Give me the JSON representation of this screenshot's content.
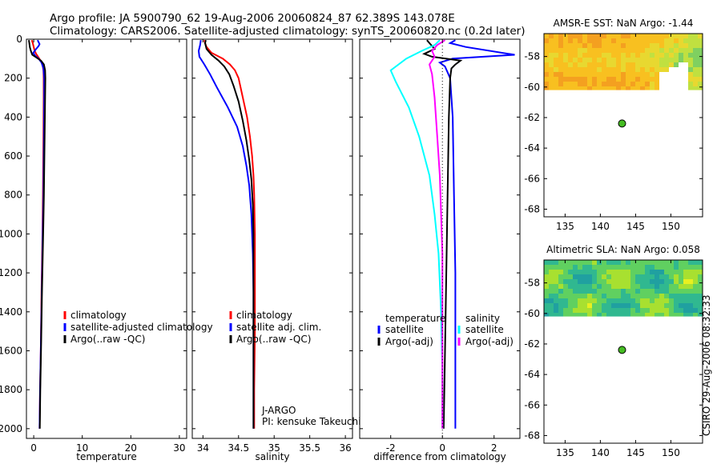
{
  "header": {
    "line1": "Argo profile: JA 5900790_62 19-Aug-2006 20060824_87 62.389S 143.078E",
    "line2": "Climatology: CARS2006. Satellite-adjusted climatology: synTS_20060820.nc (0.2d later)"
  },
  "stamp": "CSIRO 29-Aug-2006 08:32:33",
  "colors": {
    "red": "#ff0000",
    "blue": "#0000ff",
    "black": "#000000",
    "cyan": "#00ffff",
    "magenta": "#ff00ff",
    "float": "#44bb22"
  },
  "chart_data": [
    {
      "type": "line",
      "title": "",
      "xlabel": "temperature",
      "ylabel": "",
      "xlim": [
        -1.5,
        31.5
      ],
      "ylim": [
        2050,
        0
      ],
      "xticks": [
        0,
        10,
        20,
        30
      ],
      "yticks": [
        0,
        200,
        400,
        600,
        800,
        1000,
        1200,
        1400,
        1600,
        1800,
        2000
      ],
      "legend": [
        "climatology",
        "satellite-adjusted climatology",
        "Argo(..raw -QC)"
      ],
      "series": [
        {
          "name": "climatology",
          "color": "red",
          "points": [
            [
              -0.4,
              5
            ],
            [
              -0.2,
              20
            ],
            [
              0,
              40
            ],
            [
              0.2,
              60
            ],
            [
              0.5,
              75
            ],
            [
              0.9,
              90
            ],
            [
              1.4,
              110
            ],
            [
              1.8,
              130
            ],
            [
              2.0,
              160
            ],
            [
              2.05,
              200
            ],
            [
              2.05,
              300
            ],
            [
              2.0,
              500
            ],
            [
              1.9,
              800
            ],
            [
              1.8,
              1000
            ],
            [
              1.6,
              1300
            ],
            [
              1.45,
              1600
            ],
            [
              1.3,
              1800
            ],
            [
              1.2,
              2000
            ]
          ]
        },
        {
          "name": "satellite-adjusted climatology",
          "color": "blue",
          "points": [
            [
              0.8,
              5
            ],
            [
              1.0,
              15
            ],
            [
              1.2,
              25
            ],
            [
              1.0,
              35
            ],
            [
              0.5,
              50
            ],
            [
              -0.1,
              70
            ],
            [
              0.3,
              85
            ],
            [
              1.0,
              100
            ],
            [
              1.6,
              120
            ],
            [
              2.0,
              150
            ],
            [
              2.15,
              200
            ],
            [
              2.15,
              300
            ],
            [
              2.1,
              500
            ],
            [
              2.0,
              800
            ],
            [
              1.85,
              1000
            ],
            [
              1.65,
              1300
            ],
            [
              1.45,
              1600
            ],
            [
              1.3,
              1800
            ],
            [
              1.2,
              2000
            ]
          ]
        },
        {
          "name": "Argo(..raw -QC)",
          "color": "black",
          "points": [
            [
              -1.0,
              5
            ],
            [
              -0.9,
              20
            ],
            [
              -0.8,
              40
            ],
            [
              -0.6,
              60
            ],
            [
              -0.3,
              80
            ],
            [
              0.6,
              95
            ],
            [
              1.5,
              110
            ],
            [
              2.1,
              130
            ],
            [
              2.35,
              160
            ],
            [
              2.4,
              200
            ],
            [
              2.35,
              300
            ],
            [
              2.25,
              500
            ],
            [
              2.1,
              800
            ],
            [
              1.95,
              1000
            ],
            [
              1.7,
              1300
            ],
            [
              1.5,
              1600
            ],
            [
              1.35,
              1800
            ],
            [
              1.25,
              2000
            ]
          ]
        }
      ]
    },
    {
      "type": "line",
      "title": "",
      "xlabel": "salinity",
      "ylabel": "",
      "xlim": [
        33.85,
        36.1
      ],
      "ylim": [
        2050,
        0
      ],
      "xticks": [
        34,
        34.5,
        35,
        35.5,
        36
      ],
      "xtick_labels": [
        "34",
        "34.5",
        "35",
        "35.5",
        "36"
      ],
      "yticks": [
        0,
        200,
        400,
        600,
        800,
        1000,
        1200,
        1400,
        1600,
        1800,
        2000
      ],
      "legend": [
        "climatology",
        "satellite adj. clim.",
        "Argo(..raw -QC)"
      ],
      "annotations": [
        "J-ARGO",
        "PI: kensuke Takeuchi"
      ],
      "series": [
        {
          "name": "climatology",
          "color": "red",
          "points": [
            [
              34.02,
              5
            ],
            [
              34.03,
              20
            ],
            [
              34.05,
              40
            ],
            [
              34.12,
              70
            ],
            [
              34.28,
              100
            ],
            [
              34.38,
              130
            ],
            [
              34.45,
              160
            ],
            [
              34.5,
              200
            ],
            [
              34.56,
              300
            ],
            [
              34.62,
              400
            ],
            [
              34.66,
              500
            ],
            [
              34.69,
              600
            ],
            [
              34.71,
              700
            ],
            [
              34.72,
              800
            ],
            [
              34.73,
              1000
            ],
            [
              34.73,
              1200
            ],
            [
              34.73,
              1500
            ],
            [
              34.72,
              1800
            ],
            [
              34.72,
              2000
            ]
          ]
        },
        {
          "name": "satellite adj. clim.",
          "color": "blue",
          "points": [
            [
              33.97,
              5
            ],
            [
              33.96,
              30
            ],
            [
              33.94,
              60
            ],
            [
              33.95,
              90
            ],
            [
              34.02,
              130
            ],
            [
              34.1,
              180
            ],
            [
              34.2,
              250
            ],
            [
              34.35,
              350
            ],
            [
              34.48,
              450
            ],
            [
              34.56,
              550
            ],
            [
              34.61,
              650
            ],
            [
              34.65,
              750
            ],
            [
              34.68,
              900
            ],
            [
              34.7,
              1100
            ],
            [
              34.71,
              1300
            ],
            [
              34.71,
              1600
            ],
            [
              34.71,
              1800
            ],
            [
              34.71,
              2000
            ]
          ]
        },
        {
          "name": "Argo(..raw -QC)",
          "color": "black",
          "points": [
            [
              34.04,
              5
            ],
            [
              34.03,
              20
            ],
            [
              34.05,
              50
            ],
            [
              34.12,
              80
            ],
            [
              34.22,
              110
            ],
            [
              34.3,
              140
            ],
            [
              34.37,
              180
            ],
            [
              34.43,
              240
            ],
            [
              34.5,
              320
            ],
            [
              34.56,
              420
            ],
            [
              34.61,
              520
            ],
            [
              34.65,
              620
            ],
            [
              34.68,
              720
            ],
            [
              34.7,
              850
            ],
            [
              34.71,
              1000
            ],
            [
              34.71,
              1300
            ],
            [
              34.71,
              1600
            ],
            [
              34.71,
              1800
            ],
            [
              34.71,
              2000
            ]
          ]
        }
      ]
    },
    {
      "type": "line",
      "title": "",
      "xlabel": "difference from climatology",
      "ylabel": "",
      "xlim": [
        -3.2,
        3.0
      ],
      "ylim": [
        2050,
        0
      ],
      "xticks": [
        -2,
        0,
        2
      ],
      "yticks": [
        0,
        200,
        400,
        600,
        800,
        1000,
        1200,
        1400,
        1600,
        1800,
        2000
      ],
      "legend_groups": [
        {
          "heading": "temperature",
          "entries": [
            "satellite",
            "Argo(-adj)"
          ]
        },
        {
          "heading": "salinity",
          "entries": [
            "satellite",
            "Argo(-adj)"
          ]
        }
      ],
      "series": [
        {
          "name": "temperature satellite",
          "color": "blue",
          "points": [
            [
              0.5,
              5
            ],
            [
              0.3,
              20
            ],
            [
              0.9,
              40
            ],
            [
              2.8,
              80
            ],
            [
              0.4,
              100
            ],
            [
              -0.1,
              120
            ],
            [
              0.1,
              140
            ],
            [
              0.3,
              200
            ],
            [
              0.4,
              400
            ],
            [
              0.45,
              800
            ],
            [
              0.5,
              1200
            ],
            [
              0.5,
              1600
            ],
            [
              0.5,
              2000
            ]
          ]
        },
        {
          "name": "temperature Argo(-adj)",
          "color": "black",
          "points": [
            [
              -0.6,
              5
            ],
            [
              -0.5,
              20
            ],
            [
              -0.3,
              50
            ],
            [
              -0.7,
              75
            ],
            [
              -0.4,
              90
            ],
            [
              0.7,
              110
            ],
            [
              0.5,
              130
            ],
            [
              0.35,
              150
            ],
            [
              0.3,
              200
            ],
            [
              0.25,
              400
            ],
            [
              0.2,
              800
            ],
            [
              0.15,
              1200
            ],
            [
              0.1,
              1600
            ],
            [
              0.05,
              2000
            ]
          ]
        },
        {
          "name": "salinity satellite",
          "color": "cyan",
          "points": [
            [
              -0.1,
              5
            ],
            [
              -0.3,
              30
            ],
            [
              -0.8,
              60
            ],
            [
              -1.4,
              100
            ],
            [
              -2.0,
              160
            ],
            [
              -1.8,
              220
            ],
            [
              -1.3,
              350
            ],
            [
              -0.9,
              500
            ],
            [
              -0.5,
              700
            ],
            [
              -0.3,
              900
            ],
            [
              -0.15,
              1100
            ],
            [
              -0.05,
              1400
            ],
            [
              0,
              1700
            ],
            [
              0,
              2000
            ]
          ]
        },
        {
          "name": "salinity Argo(-adj)",
          "color": "magenta",
          "points": [
            [
              0.1,
              5
            ],
            [
              -0.2,
              30
            ],
            [
              -0.4,
              60
            ],
            [
              -0.3,
              90
            ],
            [
              -0.5,
              130
            ],
            [
              -0.4,
              180
            ],
            [
              -0.3,
              300
            ],
            [
              -0.2,
              500
            ],
            [
              -0.1,
              700
            ],
            [
              -0.05,
              900
            ],
            [
              0,
              1100
            ],
            [
              0,
              1500
            ],
            [
              0,
              2000
            ]
          ]
        }
      ]
    },
    {
      "type": "heatmap",
      "title": "AMSR-E SST: NaN Argo: -1.44",
      "xlim": [
        132,
        154.5
      ],
      "ylim": [
        -68.5,
        -56.5
      ],
      "xticks": [
        135,
        140,
        145,
        150
      ],
      "yticks": [
        -58,
        -60,
        -62,
        -64,
        -66,
        -68
      ],
      "field_lat_range": [
        -60.2,
        -56.5
      ],
      "palette": [
        "#f4a020",
        "#f8c020",
        "#e8d830",
        "#c0e040",
        "#7fd060"
      ],
      "float_position": {
        "lon": 143.078,
        "lat": -62.389
      }
    },
    {
      "type": "heatmap",
      "title": "Altimetric SLA: NaN Argo: 0.058",
      "xlim": [
        132,
        154.5
      ],
      "ylim": [
        -68.5,
        -56.5
      ],
      "xticks": [
        135,
        140,
        145,
        150
      ],
      "yticks": [
        -58,
        -60,
        -62,
        -64,
        -66,
        -68
      ],
      "field_lat_range": [
        -60.2,
        -56.5
      ],
      "palette": [
        "#e8f020",
        "#a8e030",
        "#60d060",
        "#30b890",
        "#20a0a0"
      ],
      "float_position": {
        "lon": 143.078,
        "lat": -62.389
      }
    }
  ]
}
